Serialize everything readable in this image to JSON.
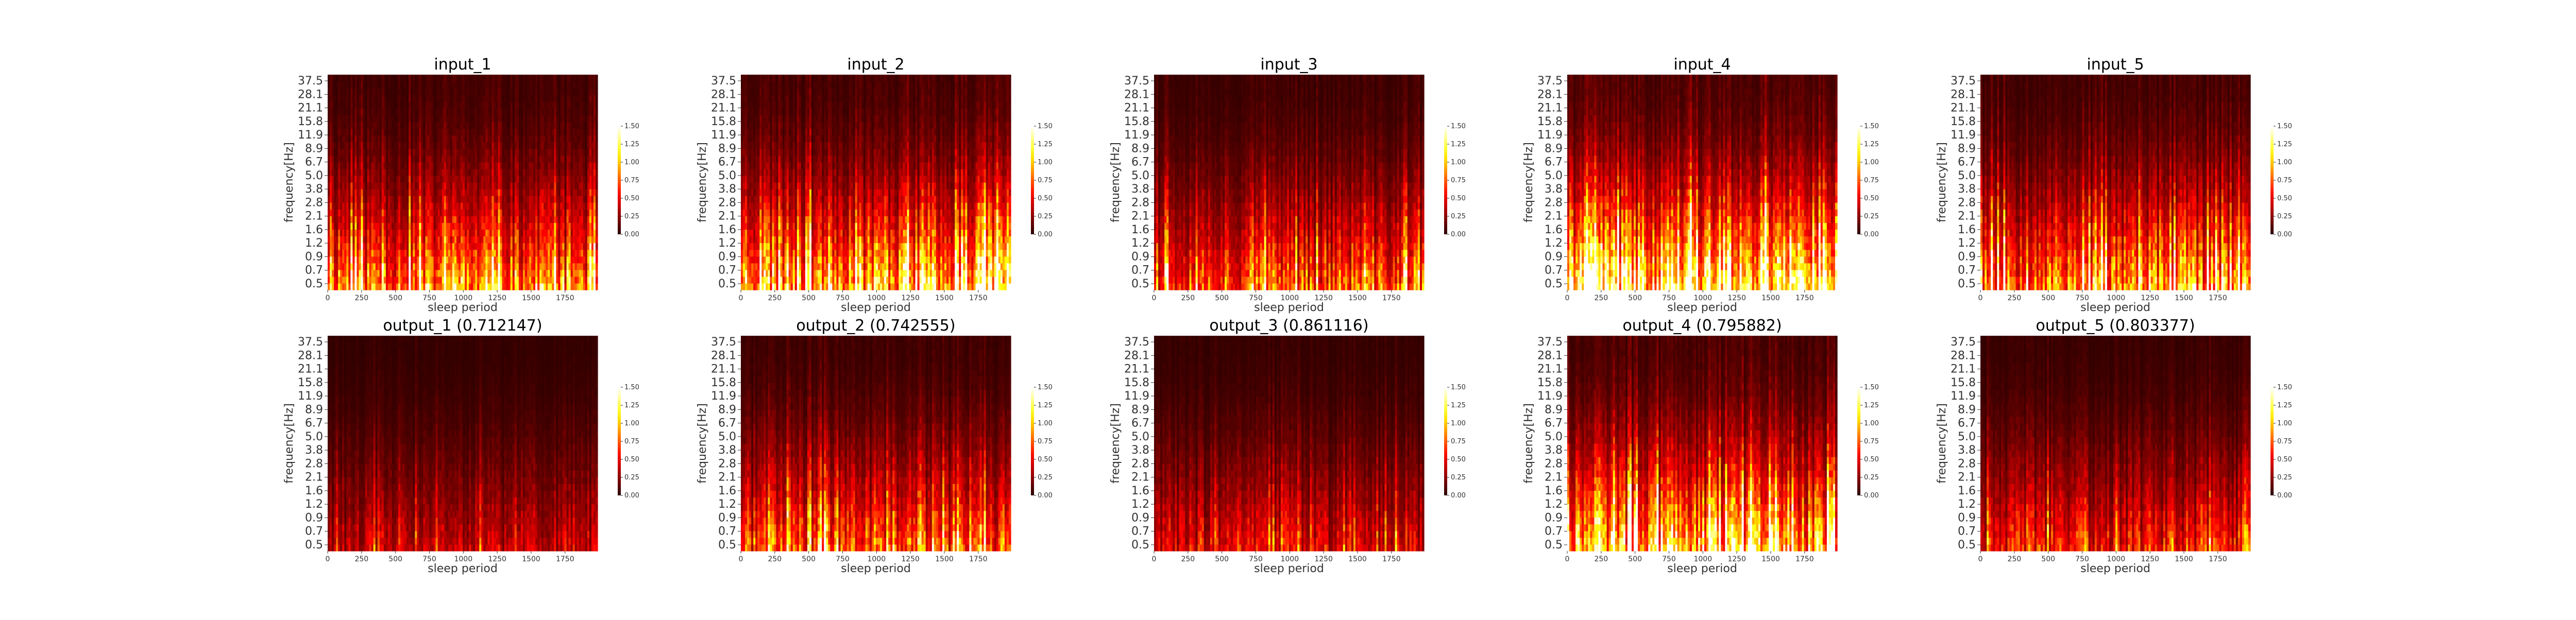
{
  "chart_data": [
    {
      "type": "heatmap",
      "title": "input_1",
      "xlabel": "sleep period",
      "ylabel": "frequency[Hz]",
      "xticks": [
        "0",
        "250",
        "500",
        "750",
        "1000",
        "1250",
        "1500",
        "1750"
      ],
      "yticks": [
        "0.5",
        "0.7",
        "0.9",
        "1.2",
        "1.6",
        "2.1",
        "2.8",
        "3.8",
        "5.0",
        "6.7",
        "8.9",
        "11.9",
        "15.8",
        "21.1",
        "28.1",
        "37.5"
      ],
      "xlim": [
        0,
        1990
      ],
      "colormap": "hot",
      "colorbar_ticks": [
        "0.00",
        "0.25",
        "0.50",
        "0.75",
        "1.00",
        "1.25",
        "1.50"
      ],
      "clim": [
        0,
        1.5
      ]
    },
    {
      "type": "heatmap",
      "title": "input_2",
      "xlabel": "sleep period",
      "ylabel": "frequency[Hz]",
      "xticks": [
        "0",
        "250",
        "500",
        "750",
        "1000",
        "1250",
        "1500",
        "1750"
      ],
      "yticks": [
        "0.5",
        "0.7",
        "0.9",
        "1.2",
        "1.6",
        "2.1",
        "2.8",
        "3.8",
        "5.0",
        "6.7",
        "8.9",
        "11.9",
        "15.8",
        "21.1",
        "28.1",
        "37.5"
      ],
      "xlim": [
        0,
        1990
      ],
      "colormap": "hot",
      "colorbar_ticks": [
        "0.00",
        "0.25",
        "0.50",
        "0.75",
        "1.00",
        "1.25",
        "1.50"
      ],
      "clim": [
        0,
        1.5
      ]
    },
    {
      "type": "heatmap",
      "title": "input_3",
      "xlabel": "sleep period",
      "ylabel": "frequency[Hz]",
      "xticks": [
        "0",
        "250",
        "500",
        "750",
        "1000",
        "1250",
        "1500",
        "1750"
      ],
      "yticks": [
        "0.5",
        "0.7",
        "0.9",
        "1.2",
        "1.6",
        "2.1",
        "2.8",
        "3.8",
        "5.0",
        "6.7",
        "8.9",
        "11.9",
        "15.8",
        "21.1",
        "28.1",
        "37.5"
      ],
      "xlim": [
        0,
        1990
      ],
      "colormap": "hot",
      "colorbar_ticks": [
        "0.00",
        "0.25",
        "0.50",
        "0.75",
        "1.00",
        "1.25",
        "1.50"
      ],
      "clim": [
        0,
        1.5
      ]
    },
    {
      "type": "heatmap",
      "title": "input_4",
      "xlabel": "sleep period",
      "ylabel": "frequency[Hz]",
      "xticks": [
        "0",
        "250",
        "500",
        "750",
        "1000",
        "1250",
        "1500",
        "1750"
      ],
      "yticks": [
        "0.5",
        "0.7",
        "0.9",
        "1.2",
        "1.6",
        "2.1",
        "2.8",
        "3.8",
        "5.0",
        "6.7",
        "8.9",
        "11.9",
        "15.8",
        "21.1",
        "28.1",
        "37.5"
      ],
      "xlim": [
        0,
        1990
      ],
      "colormap": "hot",
      "colorbar_ticks": [
        "0.00",
        "0.25",
        "0.50",
        "0.75",
        "1.00",
        "1.25",
        "1.50"
      ],
      "clim": [
        0,
        1.5
      ]
    },
    {
      "type": "heatmap",
      "title": "input_5",
      "xlabel": "sleep period",
      "ylabel": "frequency[Hz]",
      "xticks": [
        "0",
        "250",
        "500",
        "750",
        "1000",
        "1250",
        "1500",
        "1750"
      ],
      "yticks": [
        "0.5",
        "0.7",
        "0.9",
        "1.2",
        "1.6",
        "2.1",
        "2.8",
        "3.8",
        "5.0",
        "6.7",
        "8.9",
        "11.9",
        "15.8",
        "21.1",
        "28.1",
        "37.5"
      ],
      "xlim": [
        0,
        1990
      ],
      "colormap": "hot",
      "colorbar_ticks": [
        "0.00",
        "0.25",
        "0.50",
        "0.75",
        "1.00",
        "1.25",
        "1.50"
      ],
      "clim": [
        0,
        1.5
      ]
    },
    {
      "type": "heatmap",
      "title": "output_1 (0.712147)",
      "xlabel": "sleep period",
      "ylabel": "frequency[Hz]",
      "xticks": [
        "0",
        "250",
        "500",
        "750",
        "1000",
        "1250",
        "1500",
        "1750"
      ],
      "yticks": [
        "0.5",
        "0.7",
        "0.9",
        "1.2",
        "1.6",
        "2.1",
        "2.8",
        "3.8",
        "5.0",
        "6.7",
        "8.9",
        "11.9",
        "15.8",
        "21.1",
        "28.1",
        "37.5"
      ],
      "xlim": [
        0,
        1990
      ],
      "colormap": "hot",
      "colorbar_ticks": [
        "0.00",
        "0.25",
        "0.50",
        "0.75",
        "1.00",
        "1.25",
        "1.50"
      ],
      "clim": [
        0,
        1.5
      ]
    },
    {
      "type": "heatmap",
      "title": "output_2 (0.742555)",
      "xlabel": "sleep period",
      "ylabel": "frequency[Hz]",
      "xticks": [
        "0",
        "250",
        "500",
        "750",
        "1000",
        "1250",
        "1500",
        "1750"
      ],
      "yticks": [
        "0.5",
        "0.7",
        "0.9",
        "1.2",
        "1.6",
        "2.1",
        "2.8",
        "3.8",
        "5.0",
        "6.7",
        "8.9",
        "11.9",
        "15.8",
        "21.1",
        "28.1",
        "37.5"
      ],
      "xlim": [
        0,
        1990
      ],
      "colormap": "hot",
      "colorbar_ticks": [
        "0.00",
        "0.25",
        "0.50",
        "0.75",
        "1.00",
        "1.25",
        "1.50"
      ],
      "clim": [
        0,
        1.5
      ]
    },
    {
      "type": "heatmap",
      "title": "output_3 (0.861116)",
      "xlabel": "sleep period",
      "ylabel": "frequency[Hz]",
      "xticks": [
        "0",
        "250",
        "500",
        "750",
        "1000",
        "1250",
        "1500",
        "1750"
      ],
      "yticks": [
        "0.5",
        "0.7",
        "0.9",
        "1.2",
        "1.6",
        "2.1",
        "2.8",
        "3.8",
        "5.0",
        "6.7",
        "8.9",
        "11.9",
        "15.8",
        "21.1",
        "28.1",
        "37.5"
      ],
      "xlim": [
        0,
        1990
      ],
      "colormap": "hot",
      "colorbar_ticks": [
        "0.00",
        "0.25",
        "0.50",
        "0.75",
        "1.00",
        "1.25",
        "1.50"
      ],
      "clim": [
        0,
        1.5
      ]
    },
    {
      "type": "heatmap",
      "title": "output_4 (0.795882)",
      "xlabel": "sleep period",
      "ylabel": "frequency[Hz]",
      "xticks": [
        "0",
        "250",
        "500",
        "750",
        "1000",
        "1250",
        "1500",
        "1750"
      ],
      "yticks": [
        "0.5",
        "0.7",
        "0.9",
        "1.2",
        "1.6",
        "2.1",
        "2.8",
        "3.8",
        "5.0",
        "6.7",
        "8.9",
        "11.9",
        "15.8",
        "21.1",
        "28.1",
        "37.5"
      ],
      "xlim": [
        0,
        1990
      ],
      "colormap": "hot",
      "colorbar_ticks": [
        "0.00",
        "0.25",
        "0.50",
        "0.75",
        "1.00",
        "1.25",
        "1.50"
      ],
      "clim": [
        0,
        1.5
      ]
    },
    {
      "type": "heatmap",
      "title": "output_5 (0.803377)",
      "xlabel": "sleep period",
      "ylabel": "frequency[Hz]",
      "xticks": [
        "0",
        "250",
        "500",
        "750",
        "1000",
        "1250",
        "1500",
        "1750"
      ],
      "yticks": [
        "0.5",
        "0.7",
        "0.9",
        "1.2",
        "1.6",
        "2.1",
        "2.8",
        "3.8",
        "5.0",
        "6.7",
        "8.9",
        "11.9",
        "15.8",
        "21.1",
        "28.1",
        "37.5"
      ],
      "xlim": [
        0,
        1990
      ],
      "colormap": "hot",
      "colorbar_ticks": [
        "0.00",
        "0.25",
        "0.50",
        "0.75",
        "1.00",
        "1.25",
        "1.50"
      ],
      "clim": [
        0,
        1.5
      ]
    }
  ]
}
